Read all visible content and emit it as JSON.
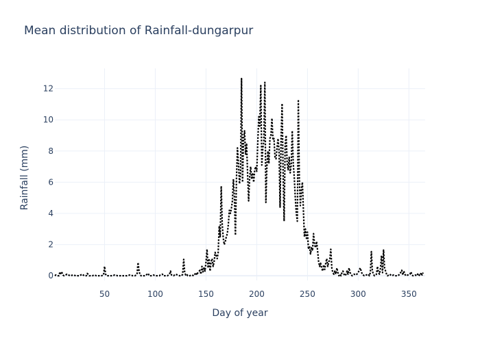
{
  "chart_data": {
    "type": "line",
    "title": "Mean distribution of Rainfall-dungarpur",
    "xlabel": "Day of year",
    "ylabel": "Rainfall (mm)",
    "xlim": [
      1,
      366
    ],
    "ylim": [
      -0.3,
      13.3
    ],
    "xticks": [
      50,
      100,
      150,
      200,
      250,
      300,
      350
    ],
    "yticks": [
      0,
      2,
      4,
      6,
      8,
      10,
      12
    ],
    "grid": true,
    "line_color": "#000000",
    "line_style": "dotted",
    "series": [
      {
        "points": [
          [
            1,
            0.0
          ],
          [
            2,
            0.05
          ],
          [
            3,
            0.02
          ],
          [
            4,
            0.0
          ],
          [
            5,
            0.0
          ],
          [
            6,
            0.25
          ],
          [
            7,
            0.1
          ],
          [
            8,
            0.2
          ],
          [
            9,
            0.05
          ],
          [
            10,
            0.0
          ],
          [
            13,
            0.1
          ],
          [
            16,
            0.0
          ],
          [
            19,
            0.05
          ],
          [
            22,
            0.0
          ],
          [
            25,
            0.0
          ],
          [
            28,
            0.1
          ],
          [
            30,
            0.0
          ],
          [
            32,
            0.0
          ],
          [
            33,
            0.15
          ],
          [
            35,
            0.0
          ],
          [
            38,
            0.0
          ],
          [
            40,
            0.05
          ],
          [
            42,
            0.0
          ],
          [
            45,
            0.0
          ],
          [
            47,
            0.0
          ],
          [
            49,
            0.05
          ],
          [
            50,
            0.6
          ],
          [
            51,
            0.1
          ],
          [
            52,
            0.0
          ],
          [
            55,
            0.0
          ],
          [
            58,
            0.0
          ],
          [
            60,
            0.05
          ],
          [
            63,
            0.0
          ],
          [
            66,
            0.0
          ],
          [
            69,
            0.0
          ],
          [
            72,
            0.0
          ],
          [
            75,
            0.05
          ],
          [
            78,
            0.0
          ],
          [
            80,
            0.0
          ],
          [
            82,
            0.1
          ],
          [
            83,
            0.85
          ],
          [
            84,
            0.3
          ],
          [
            85,
            0.05
          ],
          [
            86,
            0.0
          ],
          [
            88,
            0.0
          ],
          [
            90,
            0.0
          ],
          [
            92,
            0.1
          ],
          [
            93,
            0.15
          ],
          [
            94,
            0.0
          ],
          [
            96,
            0.0
          ],
          [
            98,
            0.05
          ],
          [
            100,
            0.0
          ],
          [
            102,
            0.0
          ],
          [
            104,
            0.0
          ],
          [
            105,
            0.05
          ],
          [
            107,
            0.1
          ],
          [
            108,
            0.0
          ],
          [
            110,
            0.0
          ],
          [
            112,
            0.0
          ],
          [
            114,
            0.1
          ],
          [
            115,
            0.3
          ],
          [
            116,
            0.05
          ],
          [
            118,
            0.0
          ],
          [
            120,
            0.1
          ],
          [
            122,
            0.05
          ],
          [
            124,
            0.0
          ],
          [
            126,
            0.0
          ],
          [
            127,
            0.1
          ],
          [
            128,
            1.05
          ],
          [
            129,
            0.2
          ],
          [
            130,
            0.05
          ],
          [
            131,
            0.1
          ],
          [
            132,
            0.0
          ],
          [
            134,
            0.0
          ],
          [
            136,
            0.05
          ],
          [
            138,
            0.0
          ],
          [
            140,
            0.2
          ],
          [
            141,
            0.05
          ],
          [
            142,
            0.2
          ],
          [
            144,
            0.35
          ],
          [
            145,
            0.1
          ],
          [
            146,
            0.6
          ],
          [
            147,
            0.25
          ],
          [
            148,
            0.5
          ],
          [
            149,
            0.3
          ],
          [
            150,
            0.9
          ],
          [
            151,
            1.7
          ],
          [
            152,
            0.5
          ],
          [
            153,
            1.1
          ],
          [
            154,
            0.3
          ],
          [
            155,
            0.9
          ],
          [
            156,
            1.1
          ],
          [
            157,
            0.6
          ],
          [
            158,
            0.9
          ],
          [
            159,
            1.5
          ],
          [
            160,
            1.3
          ],
          [
            161,
            1.1
          ],
          [
            162,
            1.5
          ],
          [
            163,
            3.2
          ],
          [
            164,
            2.5
          ],
          [
            165,
            5.75
          ],
          [
            166,
            3.3
          ],
          [
            167,
            2.4
          ],
          [
            168,
            2.0
          ],
          [
            169,
            2.2
          ],
          [
            170,
            2.5
          ],
          [
            171,
            2.7
          ],
          [
            172,
            3.3
          ],
          [
            173,
            4.2
          ],
          [
            174,
            4.0
          ],
          [
            175,
            4.3
          ],
          [
            176,
            4.8
          ],
          [
            177,
            6.2
          ],
          [
            178,
            5.0
          ],
          [
            179,
            2.6
          ],
          [
            180,
            6.2
          ],
          [
            181,
            8.2
          ],
          [
            182,
            7.2
          ],
          [
            183,
            5.9
          ],
          [
            184,
            6.5
          ],
          [
            185,
            12.65
          ],
          [
            186,
            6.0
          ],
          [
            187,
            8.8
          ],
          [
            188,
            9.3
          ],
          [
            189,
            7.8
          ],
          [
            190,
            8.5
          ],
          [
            191,
            6.5
          ],
          [
            192,
            4.8
          ],
          [
            193,
            6.3
          ],
          [
            194,
            7.0
          ],
          [
            195,
            6.2
          ],
          [
            196,
            6.6
          ],
          [
            197,
            6.0
          ],
          [
            198,
            6.8
          ],
          [
            199,
            7.0
          ],
          [
            200,
            6.7
          ],
          [
            201,
            8.5
          ],
          [
            202,
            10.2
          ],
          [
            203,
            9.6
          ],
          [
            204,
            12.2
          ],
          [
            205,
            7.1
          ],
          [
            206,
            8.2
          ],
          [
            207,
            8.6
          ],
          [
            208,
            12.4
          ],
          [
            209,
            4.7
          ],
          [
            210,
            7.0
          ],
          [
            211,
            8.0
          ],
          [
            212,
            7.2
          ],
          [
            213,
            8.8
          ],
          [
            214,
            9.0
          ],
          [
            215,
            10.1
          ],
          [
            216,
            8.7
          ],
          [
            217,
            8.8
          ],
          [
            218,
            7.6
          ],
          [
            219,
            7.5
          ],
          [
            220,
            8.2
          ],
          [
            221,
            8.8
          ],
          [
            222,
            8.0
          ],
          [
            223,
            4.4
          ],
          [
            224,
            8.8
          ],
          [
            225,
            11.05
          ],
          [
            226,
            6.5
          ],
          [
            227,
            3.5
          ],
          [
            228,
            8.4
          ],
          [
            229,
            9.0
          ],
          [
            230,
            7.2
          ],
          [
            231,
            6.8
          ],
          [
            232,
            7.6
          ],
          [
            233,
            6.6
          ],
          [
            234,
            7.1
          ],
          [
            235,
            9.3
          ],
          [
            236,
            7.2
          ],
          [
            237,
            6.3
          ],
          [
            238,
            5.0
          ],
          [
            239,
            4.0
          ],
          [
            240,
            3.5
          ],
          [
            241,
            11.3
          ],
          [
            242,
            6.2
          ],
          [
            243,
            4.5
          ],
          [
            244,
            5.5
          ],
          [
            245,
            6.0
          ],
          [
            246,
            4.2
          ],
          [
            247,
            2.5
          ],
          [
            248,
            3.0
          ],
          [
            249,
            2.4
          ],
          [
            250,
            2.8
          ],
          [
            251,
            1.7
          ],
          [
            252,
            1.9
          ],
          [
            253,
            1.4
          ],
          [
            254,
            1.8
          ],
          [
            255,
            1.6
          ],
          [
            256,
            2.7
          ],
          [
            257,
            2.0
          ],
          [
            258,
            1.8
          ],
          [
            259,
            2.2
          ],
          [
            260,
            1.6
          ],
          [
            261,
            0.9
          ],
          [
            262,
            0.6
          ],
          [
            263,
            0.8
          ],
          [
            264,
            0.5
          ],
          [
            265,
            0.3
          ],
          [
            266,
            0.7
          ],
          [
            267,
            0.4
          ],
          [
            268,
            0.8
          ],
          [
            269,
            1.1
          ],
          [
            270,
            0.6
          ],
          [
            271,
            0.9
          ],
          [
            272,
            1.0
          ],
          [
            273,
            1.7
          ],
          [
            274,
            0.5
          ],
          [
            275,
            0.2
          ],
          [
            276,
            0.1
          ],
          [
            277,
            0.3
          ],
          [
            278,
            0.1
          ],
          [
            279,
            0.5
          ],
          [
            280,
            0.2
          ],
          [
            281,
            0.0
          ],
          [
            282,
            0.1
          ],
          [
            283,
            0.0
          ],
          [
            284,
            0.2
          ],
          [
            285,
            0.3
          ],
          [
            286,
            0.1
          ],
          [
            287,
            0.0
          ],
          [
            288,
            0.1
          ],
          [
            289,
            0.3
          ],
          [
            290,
            0.1
          ],
          [
            291,
            0.5
          ],
          [
            292,
            0.2
          ],
          [
            293,
            0.1
          ],
          [
            294,
            0.0
          ],
          [
            296,
            0.1
          ],
          [
            298,
            0.05
          ],
          [
            300,
            0.2
          ],
          [
            302,
            0.5
          ],
          [
            304,
            0.1
          ],
          [
            306,
            0.0
          ],
          [
            308,
            0.05
          ],
          [
            310,
            0.1
          ],
          [
            311,
            0.0
          ],
          [
            312,
            0.2
          ],
          [
            313,
            1.55
          ],
          [
            314,
            0.3
          ],
          [
            315,
            0.1
          ],
          [
            316,
            0.0
          ],
          [
            318,
            0.1
          ],
          [
            319,
            0.6
          ],
          [
            320,
            0.2
          ],
          [
            321,
            0.1
          ],
          [
            322,
            0.5
          ],
          [
            323,
            1.3
          ],
          [
            324,
            0.2
          ],
          [
            325,
            1.65
          ],
          [
            326,
            0.5
          ],
          [
            327,
            0.3
          ],
          [
            328,
            0.1
          ],
          [
            329,
            0.0
          ],
          [
            331,
            0.1
          ],
          [
            333,
            0.0
          ],
          [
            335,
            0.05
          ],
          [
            337,
            0.0
          ],
          [
            339,
            0.0
          ],
          [
            341,
            0.1
          ],
          [
            343,
            0.35
          ],
          [
            344,
            0.05
          ],
          [
            345,
            0.3
          ],
          [
            346,
            0.1
          ],
          [
            347,
            0.0
          ],
          [
            349,
            0.05
          ],
          [
            351,
            0.1
          ],
          [
            352,
            0.25
          ],
          [
            353,
            0.05
          ],
          [
            354,
            0.0
          ],
          [
            356,
            0.05
          ],
          [
            358,
            0.0
          ],
          [
            359,
            0.15
          ],
          [
            360,
            0.05
          ],
          [
            361,
            0.0
          ],
          [
            362,
            0.2
          ],
          [
            363,
            0.05
          ],
          [
            364,
            0.2
          ]
        ]
      }
    ]
  }
}
